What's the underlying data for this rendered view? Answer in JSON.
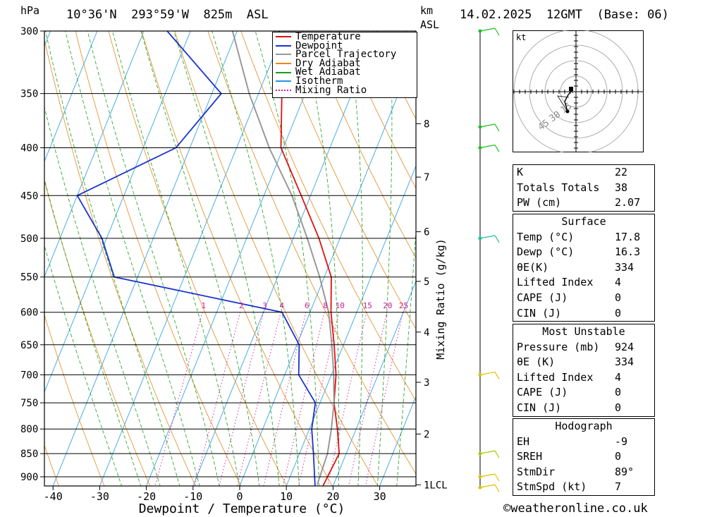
{
  "header": {
    "hpa_label": "hPa",
    "location": "10°36'N  293°59'W  825m  ASL",
    "km_label": "km",
    "asl_label": "ASL",
    "datetime": "14.02.2025  12GMT  (Base: 06)"
  },
  "chart_data": {
    "type": "line",
    "title": "",
    "xlabel": "Dewpoint / Temperature (°C)",
    "ylabel": "Mixing Ratio (g/kg)",
    "x_ticks": [
      "-40",
      "-30",
      "-20",
      "-10",
      "0",
      "10",
      "20",
      "30"
    ],
    "pressure_ticks": [
      "300",
      "350",
      "400",
      "450",
      "500",
      "550",
      "600",
      "650",
      "700",
      "750",
      "800",
      "850",
      "900"
    ],
    "km_ticks": [
      {
        "p": 377,
        "label": "8"
      },
      {
        "p": 430,
        "label": "7"
      },
      {
        "p": 492,
        "label": "6"
      },
      {
        "p": 556,
        "label": "5"
      },
      {
        "p": 630,
        "label": "4"
      },
      {
        "p": 713,
        "label": "3"
      },
      {
        "p": 810,
        "label": "2"
      },
      {
        "p": 918,
        "label": "1LCL"
      }
    ],
    "mixing_ratio_labels": [
      "1",
      "2",
      "3",
      "4",
      "6",
      "8",
      "10",
      "15",
      "20",
      "25"
    ],
    "legend": [
      "Temperature",
      "Dewpoint",
      "Parcel Trajectory",
      "Dry Adiabat",
      "Wet Adiabat",
      "Isotherm",
      "Mixing Ratio"
    ],
    "series": [
      {
        "name": "Temperature",
        "color": "#e01010",
        "points": [
          [
            -31.0,
            300
          ],
          [
            -25.0,
            350
          ],
          [
            -20.5,
            400
          ],
          [
            -12.0,
            450
          ],
          [
            -4.5,
            500
          ],
          [
            1.5,
            550
          ],
          [
            4.5,
            600
          ],
          [
            8.0,
            650
          ],
          [
            11.0,
            700
          ],
          [
            13.0,
            750
          ],
          [
            16.0,
            800
          ],
          [
            18.5,
            850
          ],
          [
            17.8,
            924
          ]
        ]
      },
      {
        "name": "Dewpoint",
        "color": "#1a33d0",
        "points": [
          [
            -55.0,
            300
          ],
          [
            -38.0,
            350
          ],
          [
            -43.0,
            400
          ],
          [
            -60.0,
            450
          ],
          [
            -51.0,
            500
          ],
          [
            -45.0,
            550
          ],
          [
            -6.0,
            600
          ],
          [
            0.5,
            650
          ],
          [
            3.0,
            700
          ],
          [
            9.0,
            750
          ],
          [
            10.5,
            800
          ],
          [
            13.0,
            850
          ],
          [
            16.3,
            924
          ]
        ]
      },
      {
        "name": "Parcel Trajectory",
        "color": "#999999",
        "points": [
          [
            -41.0,
            300
          ],
          [
            -32.0,
            350
          ],
          [
            -23.0,
            400
          ],
          [
            -14.0,
            450
          ],
          [
            -7.0,
            500
          ],
          [
            -1.0,
            550
          ],
          [
            4.0,
            600
          ],
          [
            7.5,
            650
          ],
          [
            10.5,
            700
          ],
          [
            13.0,
            750
          ],
          [
            14.7,
            800
          ],
          [
            16.0,
            850
          ],
          [
            16.5,
            918
          ]
        ]
      }
    ],
    "hodograph": {
      "units_label": "kt",
      "ring_labels": [
        "15",
        "30",
        "45"
      ]
    },
    "wind_barbs_pressure": [
      300,
      380,
      400,
      500,
      700,
      850,
      900,
      924
    ]
  },
  "indices": {
    "k": {
      "label": "K",
      "value": "22"
    },
    "totals": {
      "label": "Totals Totals",
      "value": "38"
    },
    "pw": {
      "label": "PW (cm)",
      "value": "2.07"
    },
    "surface": {
      "title": "Surface",
      "temp": {
        "label": "Temp (°C)",
        "value": "17.8"
      },
      "dewp": {
        "label": "Dewp (°C)",
        "value": "16.3"
      },
      "theta": {
        "label": "θE(K)",
        "value": "334"
      },
      "li": {
        "label": "Lifted Index",
        "value": "4"
      },
      "cape": {
        "label": "CAPE (J)",
        "value": "0"
      },
      "cin": {
        "label": "CIN (J)",
        "value": "0"
      }
    },
    "most_unstable": {
      "title": "Most Unstable",
      "pressure": {
        "label": "Pressure (mb)",
        "value": "924"
      },
      "theta": {
        "label": "θE (K)",
        "value": "334"
      },
      "li": {
        "label": "Lifted Index",
        "value": "4"
      },
      "cape": {
        "label": "CAPE (J)",
        "value": "0"
      },
      "cin": {
        "label": "CIN (J)",
        "value": "0"
      }
    },
    "hodograph": {
      "title": "Hodograph",
      "eh": {
        "label": "EH",
        "value": "-9"
      },
      "sreh": {
        "label": "SREH",
        "value": "0"
      },
      "stmdir": {
        "label": "StmDir",
        "value": "89°"
      },
      "stmspd": {
        "label": "StmSpd (kt)",
        "value": "7"
      }
    }
  },
  "footer": {
    "copyright": "©weatheronline.co.uk"
  },
  "colors": {
    "temperature": "#e01010",
    "dewpoint": "#1a33d0",
    "parcel": "#999999",
    "dry_adiabat": "#e08a1e",
    "wet_adiabat": "#1aa01a",
    "isotherm": "#1e9ae0",
    "mixing_ratio": "#d0189a"
  }
}
